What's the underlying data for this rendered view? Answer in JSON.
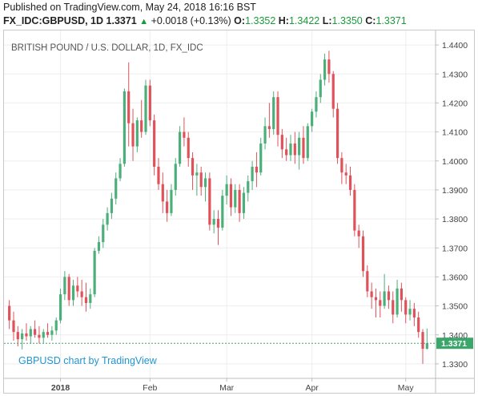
{
  "header": {
    "published": "Published on TradingView.com, May 24, 2018 16:16 BST",
    "symbol": "FX_IDC:GBPUSD, 1D",
    "last": "1.3371",
    "arrow": "▲",
    "change": "+0.0018 (+0.13%)",
    "o_label": "O:",
    "o_value": "1.3352",
    "h_label": "H:",
    "h_value": "1.3422",
    "l_label": "L:",
    "l_value": "1.3350",
    "c_label": "C:",
    "c_value": "1.3371"
  },
  "colors": {
    "up": "#4caf7a",
    "down": "#e0525a",
    "accent": "#1a9a3a",
    "watermark": "#2196d3",
    "last_price_bg": "#3aa66a"
  },
  "chart_data": {
    "type": "candlestick",
    "title": "BRITISH POUND / U.S. DOLLAR, 1D, FX_IDC",
    "watermark": "GBPUSD chart by TradingView",
    "ylim": [
      1.325,
      1.445
    ],
    "yticks": [
      "1.4400",
      "1.4300",
      "1.4200",
      "1.4100",
      "1.4000",
      "1.3900",
      "1.3800",
      "1.3700",
      "1.3600",
      "1.3500",
      "1.3400",
      "1.3300"
    ],
    "ytick_values": [
      1.44,
      1.43,
      1.42,
      1.41,
      1.4,
      1.39,
      1.38,
      1.37,
      1.36,
      1.35,
      1.34,
      1.33
    ],
    "xticks": [
      "2018",
      "Feb",
      "Mar",
      "Apr",
      "May"
    ],
    "xtick_candle_index": [
      12,
      33,
      51,
      71,
      93
    ],
    "last_price": "1.3371",
    "last_price_value": 1.3371,
    "candles": [
      {
        "o": 1.35,
        "h": 1.352,
        "l": 1.342,
        "c": 1.345
      },
      {
        "o": 1.345,
        "h": 1.348,
        "l": 1.338,
        "c": 1.341
      },
      {
        "o": 1.341,
        "h": 1.343,
        "l": 1.336,
        "c": 1.3385
      },
      {
        "o": 1.3385,
        "h": 1.342,
        "l": 1.335,
        "c": 1.3405
      },
      {
        "o": 1.3405,
        "h": 1.344,
        "l": 1.338,
        "c": 1.3395
      },
      {
        "o": 1.3395,
        "h": 1.343,
        "l": 1.337,
        "c": 1.342
      },
      {
        "o": 1.342,
        "h": 1.345,
        "l": 1.339,
        "c": 1.34
      },
      {
        "o": 1.34,
        "h": 1.343,
        "l": 1.337,
        "c": 1.339
      },
      {
        "o": 1.339,
        "h": 1.342,
        "l": 1.337,
        "c": 1.341
      },
      {
        "o": 1.341,
        "h": 1.344,
        "l": 1.339,
        "c": 1.34
      },
      {
        "o": 1.34,
        "h": 1.343,
        "l": 1.338,
        "c": 1.3415
      },
      {
        "o": 1.3415,
        "h": 1.346,
        "l": 1.34,
        "c": 1.345
      },
      {
        "o": 1.345,
        "h": 1.356,
        "l": 1.344,
        "c": 1.354
      },
      {
        "o": 1.354,
        "h": 1.362,
        "l": 1.352,
        "c": 1.36
      },
      {
        "o": 1.36,
        "h": 1.361,
        "l": 1.35,
        "c": 1.352
      },
      {
        "o": 1.352,
        "h": 1.359,
        "l": 1.35,
        "c": 1.357
      },
      {
        "o": 1.357,
        "h": 1.36,
        "l": 1.353,
        "c": 1.355
      },
      {
        "o": 1.355,
        "h": 1.359,
        "l": 1.35,
        "c": 1.353
      },
      {
        "o": 1.353,
        "h": 1.358,
        "l": 1.348,
        "c": 1.351
      },
      {
        "o": 1.351,
        "h": 1.356,
        "l": 1.349,
        "c": 1.354
      },
      {
        "o": 1.354,
        "h": 1.37,
        "l": 1.353,
        "c": 1.369
      },
      {
        "o": 1.369,
        "h": 1.374,
        "l": 1.368,
        "c": 1.372
      },
      {
        "o": 1.372,
        "h": 1.38,
        "l": 1.37,
        "c": 1.378
      },
      {
        "o": 1.378,
        "h": 1.384,
        "l": 1.376,
        "c": 1.382
      },
      {
        "o": 1.382,
        "h": 1.389,
        "l": 1.38,
        "c": 1.387
      },
      {
        "o": 1.387,
        "h": 1.396,
        "l": 1.385,
        "c": 1.394
      },
      {
        "o": 1.394,
        "h": 1.401,
        "l": 1.393,
        "c": 1.399
      },
      {
        "o": 1.399,
        "h": 1.425,
        "l": 1.398,
        "c": 1.424
      },
      {
        "o": 1.424,
        "h": 1.434,
        "l": 1.405,
        "c": 1.413
      },
      {
        "o": 1.413,
        "h": 1.418,
        "l": 1.4,
        "c": 1.405
      },
      {
        "o": 1.405,
        "h": 1.415,
        "l": 1.403,
        "c": 1.414
      },
      {
        "o": 1.414,
        "h": 1.421,
        "l": 1.408,
        "c": 1.41
      },
      {
        "o": 1.41,
        "h": 1.428,
        "l": 1.409,
        "c": 1.426
      },
      {
        "o": 1.426,
        "h": 1.428,
        "l": 1.412,
        "c": 1.414
      },
      {
        "o": 1.414,
        "h": 1.416,
        "l": 1.395,
        "c": 1.398
      },
      {
        "o": 1.398,
        "h": 1.401,
        "l": 1.39,
        "c": 1.392
      },
      {
        "o": 1.392,
        "h": 1.396,
        "l": 1.382,
        "c": 1.386
      },
      {
        "o": 1.386,
        "h": 1.39,
        "l": 1.379,
        "c": 1.382
      },
      {
        "o": 1.382,
        "h": 1.392,
        "l": 1.381,
        "c": 1.39
      },
      {
        "o": 1.39,
        "h": 1.401,
        "l": 1.388,
        "c": 1.399
      },
      {
        "o": 1.399,
        "h": 1.412,
        "l": 1.398,
        "c": 1.41
      },
      {
        "o": 1.41,
        "h": 1.415,
        "l": 1.405,
        "c": 1.408
      },
      {
        "o": 1.408,
        "h": 1.41,
        "l": 1.398,
        "c": 1.401
      },
      {
        "o": 1.401,
        "h": 1.403,
        "l": 1.39,
        "c": 1.395
      },
      {
        "o": 1.395,
        "h": 1.399,
        "l": 1.388,
        "c": 1.396
      },
      {
        "o": 1.396,
        "h": 1.398,
        "l": 1.388,
        "c": 1.391
      },
      {
        "o": 1.391,
        "h": 1.396,
        "l": 1.386,
        "c": 1.394
      },
      {
        "o": 1.394,
        "h": 1.396,
        "l": 1.376,
        "c": 1.378
      },
      {
        "o": 1.378,
        "h": 1.383,
        "l": 1.375,
        "c": 1.38
      },
      {
        "o": 1.38,
        "h": 1.383,
        "l": 1.371,
        "c": 1.377
      },
      {
        "o": 1.377,
        "h": 1.39,
        "l": 1.376,
        "c": 1.388
      },
      {
        "o": 1.388,
        "h": 1.395,
        "l": 1.385,
        "c": 1.392
      },
      {
        "o": 1.392,
        "h": 1.394,
        "l": 1.381,
        "c": 1.384
      },
      {
        "o": 1.384,
        "h": 1.392,
        "l": 1.382,
        "c": 1.39
      },
      {
        "o": 1.39,
        "h": 1.392,
        "l": 1.379,
        "c": 1.382
      },
      {
        "o": 1.382,
        "h": 1.391,
        "l": 1.38,
        "c": 1.389
      },
      {
        "o": 1.389,
        "h": 1.395,
        "l": 1.386,
        "c": 1.393
      },
      {
        "o": 1.393,
        "h": 1.4,
        "l": 1.39,
        "c": 1.398
      },
      {
        "o": 1.398,
        "h": 1.403,
        "l": 1.391,
        "c": 1.396
      },
      {
        "o": 1.396,
        "h": 1.408,
        "l": 1.395,
        "c": 1.406
      },
      {
        "o": 1.406,
        "h": 1.415,
        "l": 1.404,
        "c": 1.412
      },
      {
        "o": 1.412,
        "h": 1.42,
        "l": 1.408,
        "c": 1.411
      },
      {
        "o": 1.411,
        "h": 1.424,
        "l": 1.409,
        "c": 1.422
      },
      {
        "o": 1.422,
        "h": 1.424,
        "l": 1.405,
        "c": 1.409
      },
      {
        "o": 1.409,
        "h": 1.411,
        "l": 1.401,
        "c": 1.404
      },
      {
        "o": 1.404,
        "h": 1.408,
        "l": 1.4,
        "c": 1.402
      },
      {
        "o": 1.402,
        "h": 1.409,
        "l": 1.4,
        "c": 1.406
      },
      {
        "o": 1.406,
        "h": 1.41,
        "l": 1.399,
        "c": 1.402
      },
      {
        "o": 1.402,
        "h": 1.41,
        "l": 1.397,
        "c": 1.408
      },
      {
        "o": 1.408,
        "h": 1.412,
        "l": 1.399,
        "c": 1.401
      },
      {
        "o": 1.401,
        "h": 1.413,
        "l": 1.4,
        "c": 1.412
      },
      {
        "o": 1.412,
        "h": 1.418,
        "l": 1.41,
        "c": 1.417
      },
      {
        "o": 1.417,
        "h": 1.424,
        "l": 1.415,
        "c": 1.422
      },
      {
        "o": 1.422,
        "h": 1.43,
        "l": 1.42,
        "c": 1.428
      },
      {
        "o": 1.428,
        "h": 1.437,
        "l": 1.426,
        "c": 1.435
      },
      {
        "o": 1.435,
        "h": 1.438,
        "l": 1.427,
        "c": 1.43
      },
      {
        "o": 1.43,
        "h": 1.431,
        "l": 1.415,
        "c": 1.418
      },
      {
        "o": 1.418,
        "h": 1.42,
        "l": 1.399,
        "c": 1.401
      },
      {
        "o": 1.401,
        "h": 1.403,
        "l": 1.392,
        "c": 1.396
      },
      {
        "o": 1.396,
        "h": 1.399,
        "l": 1.392,
        "c": 1.395
      },
      {
        "o": 1.395,
        "h": 1.398,
        "l": 1.388,
        "c": 1.39
      },
      {
        "o": 1.39,
        "h": 1.392,
        "l": 1.374,
        "c": 1.376
      },
      {
        "o": 1.376,
        "h": 1.378,
        "l": 1.37,
        "c": 1.374
      },
      {
        "o": 1.374,
        "h": 1.376,
        "l": 1.36,
        "c": 1.362
      },
      {
        "o": 1.362,
        "h": 1.364,
        "l": 1.353,
        "c": 1.355
      },
      {
        "o": 1.355,
        "h": 1.358,
        "l": 1.349,
        "c": 1.353
      },
      {
        "o": 1.353,
        "h": 1.356,
        "l": 1.346,
        "c": 1.352
      },
      {
        "o": 1.352,
        "h": 1.355,
        "l": 1.346,
        "c": 1.35
      },
      {
        "o": 1.35,
        "h": 1.361,
        "l": 1.349,
        "c": 1.355
      },
      {
        "o": 1.355,
        "h": 1.357,
        "l": 1.349,
        "c": 1.352
      },
      {
        "o": 1.352,
        "h": 1.355,
        "l": 1.344,
        "c": 1.347
      },
      {
        "o": 1.347,
        "h": 1.359,
        "l": 1.346,
        "c": 1.356
      },
      {
        "o": 1.356,
        "h": 1.358,
        "l": 1.348,
        "c": 1.352
      },
      {
        "o": 1.352,
        "h": 1.353,
        "l": 1.344,
        "c": 1.347
      },
      {
        "o": 1.347,
        "h": 1.352,
        "l": 1.345,
        "c": 1.349
      },
      {
        "o": 1.349,
        "h": 1.351,
        "l": 1.343,
        "c": 1.346
      },
      {
        "o": 1.346,
        "h": 1.348,
        "l": 1.339,
        "c": 1.341
      },
      {
        "o": 1.341,
        "h": 1.342,
        "l": 1.33,
        "c": 1.3352
      },
      {
        "o": 1.3352,
        "h": 1.3422,
        "l": 1.335,
        "c": 1.3371
      }
    ]
  }
}
